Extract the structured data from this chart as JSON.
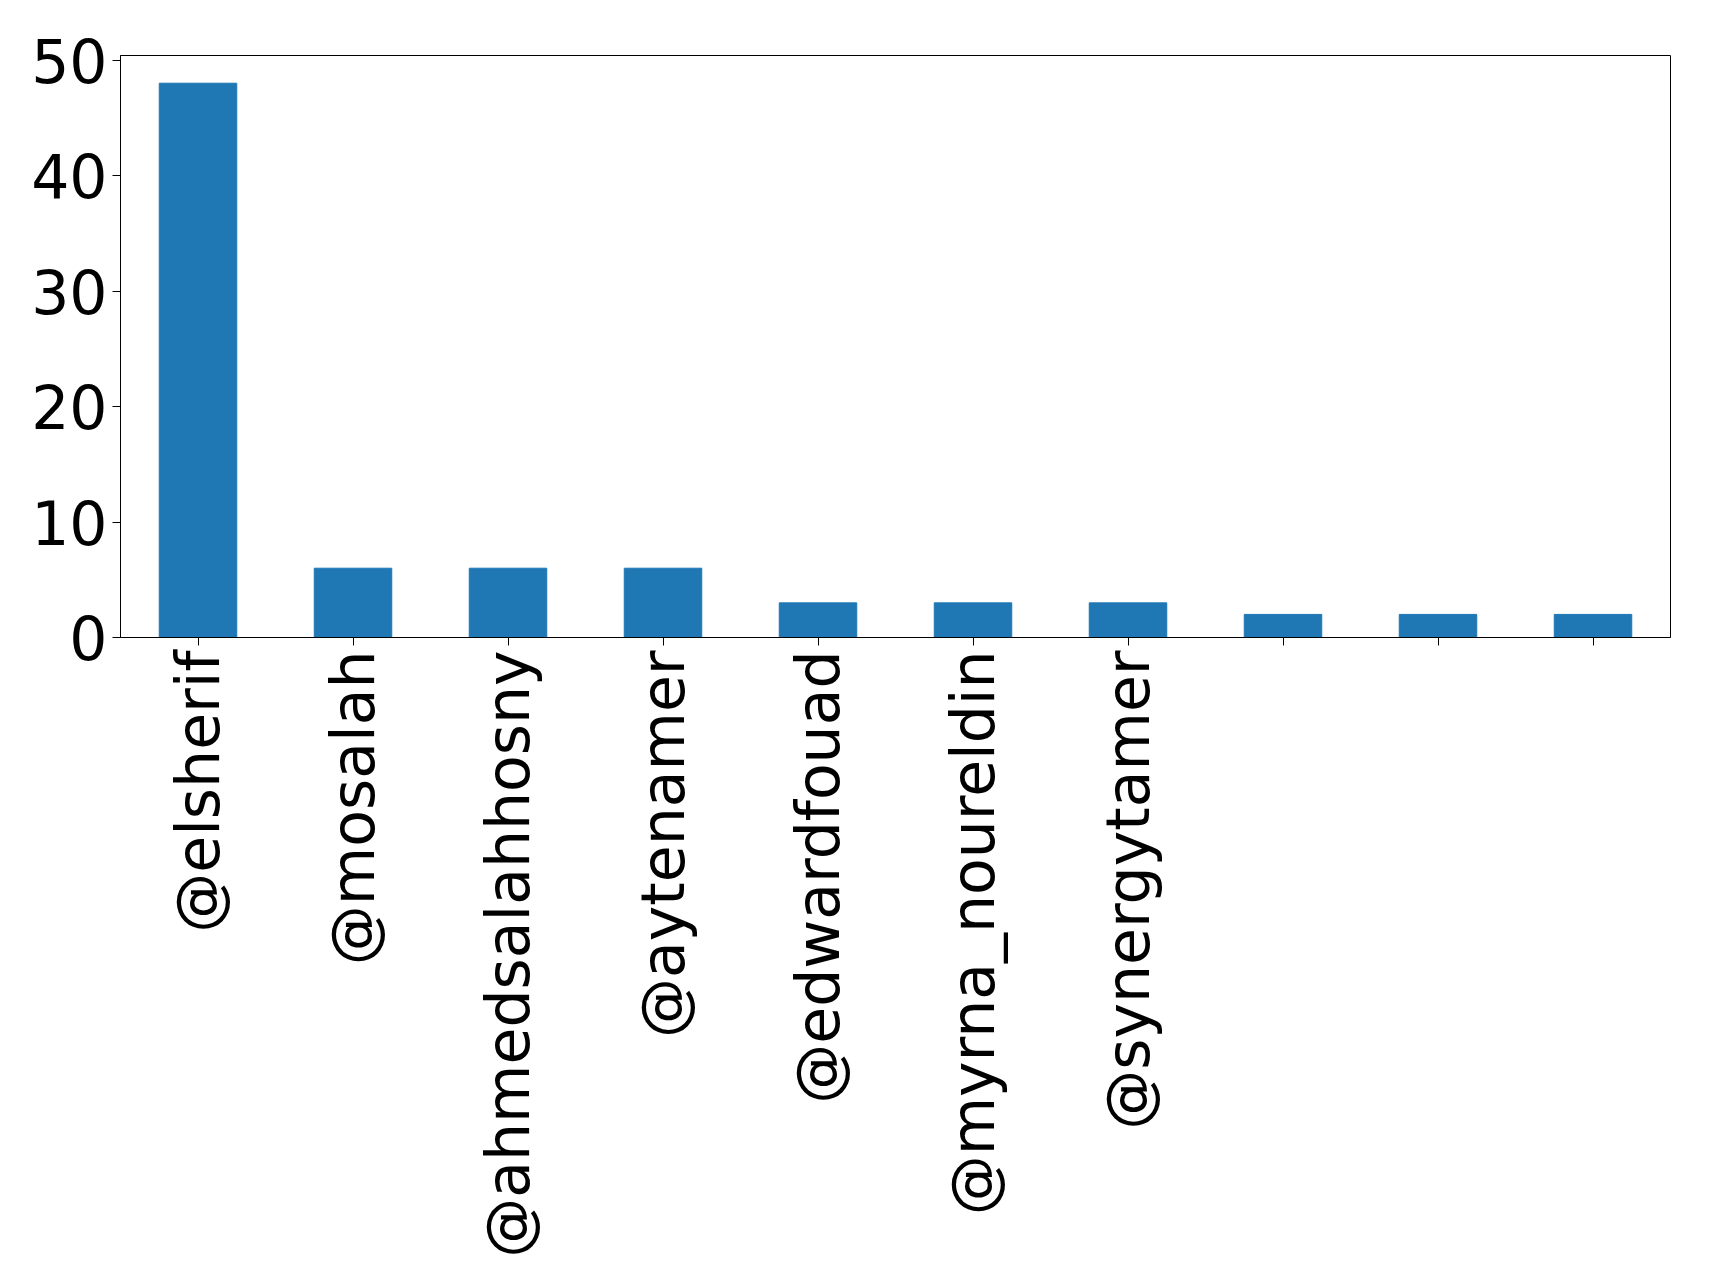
{
  "chart_data": {
    "type": "bar",
    "categories": [
      "@elsherif",
      "@mosalah",
      "@ahmedsalahhosny",
      "@aytenamer",
      "@edwardfouad",
      "@myrna_noureldin",
      "@synergytamer",
      null,
      null,
      null
    ],
    "values": [
      48,
      6,
      6,
      6,
      3,
      3,
      3,
      2,
      2,
      2
    ],
    "color": "#1f77b4",
    "ylim": [
      0,
      50.4
    ],
    "yticks": [
      0,
      10,
      20,
      30,
      40,
      50
    ],
    "grid": false
  }
}
